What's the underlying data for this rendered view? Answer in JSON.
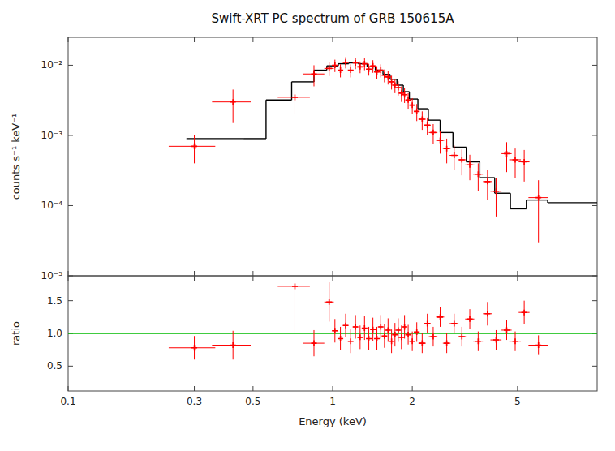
{
  "chart_data": [
    {
      "type": "scatter",
      "title": "Swift-XRT PC spectrum of GRB 150615A",
      "ylabel": "counts s⁻¹ keV⁻¹",
      "log": true,
      "tick_labels": "y",
      "xlim": [
        0.1,
        10.0
      ],
      "xticks": [
        0.1,
        0.3,
        0.5,
        1,
        2,
        5
      ],
      "ylim": [
        1e-05,
        0.025
      ],
      "yticks": [
        {
          "value": 1e-05,
          "label": "10⁻⁵"
        },
        {
          "value": 0.0001,
          "label": "10⁻⁴"
        },
        {
          "value": 0.001,
          "label": "10⁻³"
        },
        {
          "value": 0.01,
          "label": "10⁻²"
        }
      ],
      "series": [
        {
          "type": "step",
          "color": "black",
          "x_edges": [
            0.28,
            0.365,
            0.46,
            0.56,
            0.7,
            0.85,
            0.95,
            1.05,
            1.15,
            1.25,
            1.35,
            1.45,
            1.55,
            1.65,
            1.75,
            1.85,
            1.95,
            2.1,
            2.3,
            2.55,
            2.85,
            3.2,
            3.6,
            4.1,
            4.7,
            5.4,
            6.5,
            10.0
          ],
          "values": [
            0.0009,
            0.0009,
            0.0009,
            0.0032,
            0.0058,
            0.0085,
            0.0098,
            0.0105,
            0.0108,
            0.0105,
            0.0095,
            0.0085,
            0.0074,
            0.0063,
            0.0052,
            0.0042,
            0.0033,
            0.0024,
            0.00165,
            0.0011,
            0.00068,
            0.00042,
            0.00025,
            0.00015,
            9e-05,
            0.00012,
            0.00011
          ]
        },
        {
          "type": "scatter",
          "color": "red",
          "marker": "plus",
          "x": [
            0.3,
            0.42,
            0.72,
            0.85,
            0.97,
            1.02,
            1.07,
            1.12,
            1.17,
            1.22,
            1.27,
            1.32,
            1.37,
            1.42,
            1.47,
            1.52,
            1.57,
            1.62,
            1.67,
            1.72,
            1.77,
            1.82,
            1.87,
            1.93,
            2.0,
            2.08,
            2.18,
            2.28,
            2.4,
            2.55,
            2.7,
            2.88,
            3.08,
            3.3,
            3.55,
            3.85,
            4.15,
            4.55,
            4.9,
            5.3,
            6.0
          ],
          "x_err_lo": [
            0.06,
            0.07,
            0.1,
            0.08,
            0.04,
            0.025,
            0.025,
            0.025,
            0.025,
            0.025,
            0.025,
            0.025,
            0.025,
            0.025,
            0.025,
            0.025,
            0.025,
            0.025,
            0.025,
            0.025,
            0.025,
            0.025,
            0.025,
            0.04,
            0.05,
            0.05,
            0.07,
            0.07,
            0.09,
            0.09,
            0.09,
            0.11,
            0.11,
            0.13,
            0.15,
            0.15,
            0.2,
            0.2,
            0.25,
            0.25,
            0.5
          ],
          "x_err_hi": [
            0.06,
            0.07,
            0.1,
            0.08,
            0.04,
            0.025,
            0.025,
            0.025,
            0.025,
            0.025,
            0.025,
            0.025,
            0.025,
            0.025,
            0.025,
            0.025,
            0.025,
            0.025,
            0.025,
            0.025,
            0.025,
            0.025,
            0.025,
            0.04,
            0.05,
            0.05,
            0.07,
            0.07,
            0.09,
            0.09,
            0.09,
            0.11,
            0.11,
            0.13,
            0.15,
            0.15,
            0.2,
            0.2,
            0.25,
            0.25,
            0.5
          ],
          "values": [
            0.0007,
            0.003,
            0.0035,
            0.0075,
            0.009,
            0.01,
            0.0085,
            0.011,
            0.0085,
            0.0108,
            0.0095,
            0.0105,
            0.0088,
            0.0098,
            0.008,
            0.0085,
            0.0072,
            0.0068,
            0.0058,
            0.0052,
            0.0048,
            0.004,
            0.0038,
            0.0032,
            0.0027,
            0.0022,
            0.0017,
            0.0014,
            0.0011,
            0.00085,
            0.00065,
            0.00052,
            0.00045,
            0.00038,
            0.00028,
            0.00022,
            0.00016,
            0.00055,
            0.00045,
            0.00042,
            0.00013
          ],
          "err_lo": [
            0.0003,
            0.0015,
            0.0015,
            0.0025,
            0.002,
            0.002,
            0.0018,
            0.002,
            0.0018,
            0.002,
            0.0018,
            0.002,
            0.0017,
            0.002,
            0.0017,
            0.0018,
            0.0015,
            0.0015,
            0.0013,
            0.0012,
            0.0011,
            0.001,
            0.0009,
            0.0008,
            0.0007,
            0.0006,
            0.0005,
            0.0004,
            0.00035,
            0.0003,
            0.00025,
            0.0002,
            0.00018,
            0.00015,
            0.00012,
            0.0001,
            9e-05,
            0.00025,
            0.0002,
            0.0002,
            0.0001
          ],
          "err_hi": [
            0.0003,
            0.0015,
            0.0015,
            0.0025,
            0.002,
            0.002,
            0.0018,
            0.002,
            0.0018,
            0.002,
            0.0018,
            0.002,
            0.0017,
            0.002,
            0.0017,
            0.0018,
            0.0015,
            0.0015,
            0.0013,
            0.0012,
            0.0011,
            0.001,
            0.0009,
            0.0008,
            0.0007,
            0.0006,
            0.0005,
            0.0004,
            0.00035,
            0.0003,
            0.00025,
            0.0002,
            0.00018,
            0.00015,
            0.00012,
            0.0001,
            9e-05,
            0.00025,
            0.0002,
            0.0002,
            0.0001
          ]
        }
      ]
    },
    {
      "type": "scatter",
      "xlabel": "Energy (keV)",
      "ylabel": "ratio",
      "log": "x",
      "xlim": [
        0.1,
        10.0
      ],
      "xticks": [
        0.1,
        0.3,
        0.5,
        1,
        2,
        5
      ],
      "ylim": [
        0.12,
        1.88
      ],
      "yticks": [
        0.5,
        {
          "value": 1.0,
          "label": "1.0"
        },
        1.5
      ],
      "hline": {
        "value": 1.0,
        "color": "#00bb00"
      },
      "series": [
        {
          "type": "scatter",
          "color": "red",
          "marker": "plus",
          "x": [
            0.3,
            0.42,
            0.72,
            0.85,
            0.97,
            1.02,
            1.07,
            1.12,
            1.17,
            1.22,
            1.27,
            1.32,
            1.37,
            1.42,
            1.47,
            1.52,
            1.57,
            1.62,
            1.67,
            1.72,
            1.77,
            1.82,
            1.87,
            1.93,
            2.0,
            2.08,
            2.18,
            2.28,
            2.4,
            2.55,
            2.7,
            2.88,
            3.08,
            3.3,
            3.55,
            3.85,
            4.15,
            4.55,
            4.9,
            5.3,
            6.0
          ],
          "x_err_lo": [
            0.06,
            0.07,
            0.1,
            0.08,
            0.04,
            0.025,
            0.025,
            0.025,
            0.025,
            0.025,
            0.025,
            0.025,
            0.025,
            0.025,
            0.025,
            0.025,
            0.025,
            0.025,
            0.025,
            0.025,
            0.025,
            0.025,
            0.025,
            0.04,
            0.05,
            0.05,
            0.07,
            0.07,
            0.09,
            0.09,
            0.09,
            0.11,
            0.11,
            0.13,
            0.15,
            0.15,
            0.2,
            0.2,
            0.25,
            0.25,
            0.5
          ],
          "x_err_hi": [
            0.06,
            0.07,
            0.1,
            0.08,
            0.04,
            0.025,
            0.025,
            0.025,
            0.025,
            0.025,
            0.025,
            0.025,
            0.025,
            0.025,
            0.025,
            0.025,
            0.025,
            0.025,
            0.025,
            0.025,
            0.025,
            0.025,
            0.025,
            0.04,
            0.05,
            0.05,
            0.07,
            0.07,
            0.09,
            0.09,
            0.09,
            0.11,
            0.11,
            0.13,
            0.15,
            0.15,
            0.2,
            0.2,
            0.25,
            0.25,
            0.5
          ],
          "values": [
            0.78,
            0.82,
            1.72,
            0.85,
            1.48,
            1.04,
            0.92,
            1.12,
            0.88,
            1.1,
            0.94,
            1.08,
            0.92,
            1.06,
            0.92,
            1.1,
            0.96,
            1.05,
            0.88,
            0.98,
            1.05,
            0.94,
            1.1,
            0.98,
            0.88,
            1.02,
            0.85,
            1.15,
            0.95,
            1.25,
            0.85,
            1.15,
            0.95,
            1.22,
            0.88,
            1.3,
            0.9,
            1.05,
            0.88,
            1.32,
            0.82
          ],
          "err_lo": [
            0.18,
            0.22,
            0.72,
            0.2,
            0.3,
            0.18,
            0.18,
            0.18,
            0.18,
            0.18,
            0.18,
            0.18,
            0.18,
            0.18,
            0.18,
            0.18,
            0.18,
            0.18,
            0.18,
            0.18,
            0.18,
            0.18,
            0.18,
            0.15,
            0.15,
            0.15,
            0.15,
            0.15,
            0.15,
            0.15,
            0.15,
            0.15,
            0.15,
            0.15,
            0.15,
            0.18,
            0.15,
            0.15,
            0.15,
            0.18,
            0.15
          ],
          "err_hi": [
            0.18,
            0.22,
            0.05,
            0.2,
            0.3,
            0.18,
            0.18,
            0.18,
            0.18,
            0.18,
            0.18,
            0.18,
            0.18,
            0.18,
            0.18,
            0.18,
            0.18,
            0.18,
            0.18,
            0.18,
            0.18,
            0.18,
            0.18,
            0.15,
            0.15,
            0.15,
            0.15,
            0.15,
            0.15,
            0.15,
            0.15,
            0.15,
            0.15,
            0.15,
            0.15,
            0.18,
            0.15,
            0.15,
            0.15,
            0.18,
            0.15
          ]
        }
      ]
    }
  ]
}
